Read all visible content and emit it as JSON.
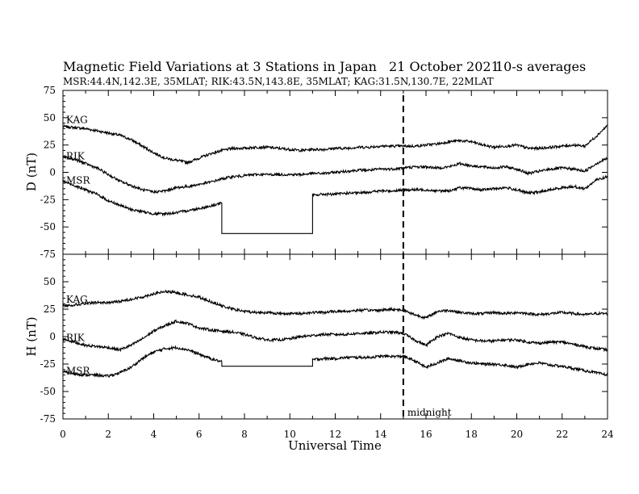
{
  "header": {
    "title": "Magnetic Field Variations at 3 Stations in Japan",
    "date": "21 October 2021",
    "averaging": "10-s averages",
    "stations_line": "MSR:44.4N,142.3E, 35MLAT;  RIK:43.5N,143.8E, 35MLAT;  KAG:31.5N,130.7E, 22MLAT"
  },
  "chart_data": [
    {
      "type": "line",
      "panel": "top",
      "ylabel": "D (nT)",
      "xlabel": "",
      "xlim": [
        0,
        24
      ],
      "ylim": [
        -75,
        75
      ],
      "yticks": [
        75,
        50,
        25,
        0,
        -25,
        -50,
        -75
      ],
      "series": [
        {
          "name": "KAG",
          "x": [
            0,
            0.5,
            1,
            1.5,
            2,
            2.5,
            3,
            3.5,
            4,
            4.5,
            5,
            5.5,
            6,
            6.5,
            7,
            7.5,
            8,
            8.5,
            9,
            9.5,
            10,
            10.5,
            11,
            11.5,
            12,
            12.5,
            13,
            13.5,
            14,
            14.5,
            15,
            15.5,
            16,
            16.5,
            17,
            17.5,
            18,
            18.5,
            19,
            19.5,
            20,
            20.5,
            21,
            21.5,
            22,
            22.5,
            23,
            23.5,
            24
          ],
          "y": [
            42,
            41,
            40,
            38,
            36,
            34,
            30,
            24,
            18,
            13,
            11,
            9,
            13,
            17,
            20,
            22,
            22,
            23,
            23,
            22,
            21,
            20,
            21,
            21,
            22,
            22,
            23,
            23,
            24,
            24,
            24,
            24,
            25,
            26,
            28,
            29,
            28,
            25,
            23,
            24,
            25,
            22,
            22,
            23,
            24,
            25,
            24,
            33,
            43
          ]
        },
        {
          "name": "RIK",
          "x": [
            0,
            0.5,
            1,
            1.5,
            2,
            2.5,
            3,
            3.5,
            4,
            4.5,
            5,
            5.5,
            6,
            6.5,
            7,
            7.5,
            8,
            8.5,
            9,
            9.5,
            10,
            10.5,
            11,
            11.5,
            12,
            12.5,
            13,
            13.5,
            14,
            14.5,
            15,
            15.5,
            16,
            16.5,
            17,
            17.5,
            18,
            18.5,
            19,
            19.5,
            20,
            20.5,
            21,
            21.5,
            22,
            22.5,
            23,
            23.5,
            24
          ],
          "y": [
            14,
            12,
            8,
            4,
            -2,
            -8,
            -12,
            -16,
            -18,
            -17,
            -14,
            -13,
            -11,
            -9,
            -6,
            -4,
            -3,
            -2,
            -2,
            -2,
            -2,
            -2,
            -1,
            -1,
            0,
            1,
            2,
            2,
            3,
            3,
            4,
            5,
            5,
            4,
            5,
            8,
            6,
            5,
            4,
            5,
            3,
            -1,
            1,
            3,
            4,
            3,
            1,
            8,
            13
          ]
        },
        {
          "name": "MSR",
          "x": [
            0,
            0.5,
            1,
            1.5,
            2,
            2.5,
            3,
            3.5,
            4,
            4.5,
            5,
            5.5,
            6,
            6.5,
            7,
            7,
            7.5,
            8,
            8.5,
            9,
            9.5,
            10,
            10.5,
            11,
            11,
            11.5,
            12,
            12.5,
            13,
            13.5,
            14,
            14.5,
            15,
            15.5,
            16,
            16.5,
            17,
            17.5,
            18,
            18.5,
            19,
            19.5,
            20,
            20.5,
            21,
            21.5,
            22,
            22.5,
            23,
            23.5,
            24
          ],
          "y": [
            -8,
            -12,
            -16,
            -20,
            -26,
            -30,
            -34,
            -36,
            -38,
            -38,
            -37,
            -35,
            -33,
            -31,
            -28,
            -56,
            -56,
            -56,
            -56,
            -56,
            -56,
            -56,
            -56,
            -56,
            -21,
            -20,
            -20,
            -19,
            -19,
            -18,
            -17,
            -17,
            -16,
            -16,
            -16,
            -17,
            -17,
            -14,
            -15,
            -16,
            -15,
            -14,
            -16,
            -19,
            -18,
            -16,
            -14,
            -13,
            -15,
            -7,
            -4
          ]
        }
      ]
    },
    {
      "type": "line",
      "panel": "bottom",
      "ylabel": "H (nT)",
      "xlabel": "Universal Time",
      "xlim": [
        0,
        24
      ],
      "ylim": [
        -75,
        75
      ],
      "xticks": [
        0,
        2,
        4,
        6,
        8,
        10,
        12,
        14,
        16,
        18,
        20,
        22,
        24
      ],
      "yticks": [
        75,
        50,
        25,
        0,
        -25,
        -50,
        -75
      ],
      "annotations": [
        {
          "x": 15,
          "style": "dashed-vertical",
          "label": "midnight"
        }
      ],
      "series": [
        {
          "name": "KAG",
          "x": [
            0,
            0.5,
            1,
            1.5,
            2,
            2.5,
            3,
            3.5,
            4,
            4.5,
            5,
            5.5,
            6,
            6.5,
            7,
            7.5,
            8,
            8.5,
            9,
            9.5,
            10,
            10.5,
            11,
            11.5,
            12,
            12.5,
            13,
            13.5,
            14,
            14.5,
            15,
            15.5,
            16,
            16.5,
            17,
            17.5,
            18,
            18.5,
            19,
            19.5,
            20,
            20.5,
            21,
            21.5,
            22,
            22.5,
            23,
            23.5,
            24
          ],
          "y": [
            28,
            29,
            30,
            31,
            31,
            32,
            34,
            36,
            39,
            41,
            40,
            38,
            36,
            32,
            28,
            25,
            23,
            22,
            22,
            21,
            21,
            21,
            22,
            22,
            23,
            23,
            24,
            24,
            24,
            25,
            24,
            20,
            17,
            23,
            24,
            22,
            21,
            21,
            22,
            21,
            22,
            21,
            20,
            21,
            22,
            21,
            20,
            21,
            21
          ]
        },
        {
          "name": "RIK",
          "x": [
            0,
            0.5,
            1,
            1.5,
            2,
            2.5,
            3,
            3.5,
            4,
            4.5,
            5,
            5.5,
            6,
            6.5,
            7,
            7.5,
            8,
            8.5,
            9,
            9.5,
            10,
            10.5,
            11,
            11.5,
            12,
            12.5,
            13,
            13.5,
            14,
            14.5,
            15,
            15.5,
            16,
            16.5,
            17,
            17.5,
            18,
            18.5,
            19,
            19.5,
            20,
            20.5,
            21,
            21.5,
            22,
            22.5,
            23,
            23.5,
            24
          ],
          "y": [
            -2,
            -5,
            -8,
            -9,
            -10,
            -12,
            -8,
            -2,
            5,
            10,
            14,
            12,
            8,
            6,
            5,
            4,
            2,
            -1,
            -3,
            -3,
            -2,
            0,
            1,
            2,
            2,
            2,
            3,
            3,
            4,
            4,
            3,
            -3,
            -8,
            0,
            3,
            -1,
            -3,
            -4,
            -4,
            -3,
            -3,
            -5,
            -6,
            -5,
            -5,
            -7,
            -9,
            -11,
            -12
          ]
        },
        {
          "name": "MSR",
          "x": [
            0,
            0.5,
            1,
            1.5,
            2,
            2.5,
            3,
            3.5,
            4,
            4.5,
            5,
            5.5,
            6,
            6.5,
            7,
            7,
            7.5,
            8,
            8.5,
            9,
            9.5,
            10,
            10.5,
            11,
            11,
            11.5,
            12,
            12.5,
            13,
            13.5,
            14,
            14.5,
            15,
            15.5,
            16,
            16.5,
            17,
            17.5,
            18,
            18.5,
            19,
            19.5,
            20,
            20.5,
            21,
            21.5,
            22,
            22.5,
            23,
            23.5,
            24
          ],
          "y": [
            -32,
            -34,
            -35,
            -35,
            -36,
            -33,
            -28,
            -20,
            -14,
            -11,
            -10,
            -12,
            -16,
            -20,
            -23,
            -27,
            -27,
            -27,
            -27,
            -27,
            -27,
            -27,
            -27,
            -27,
            -21,
            -20,
            -20,
            -19,
            -19,
            -19,
            -18,
            -18,
            -18,
            -22,
            -28,
            -24,
            -20,
            -22,
            -24,
            -25,
            -25,
            -26,
            -28,
            -25,
            -24,
            -26,
            -27,
            -29,
            -31,
            -33,
            -35
          ]
        }
      ]
    }
  ]
}
